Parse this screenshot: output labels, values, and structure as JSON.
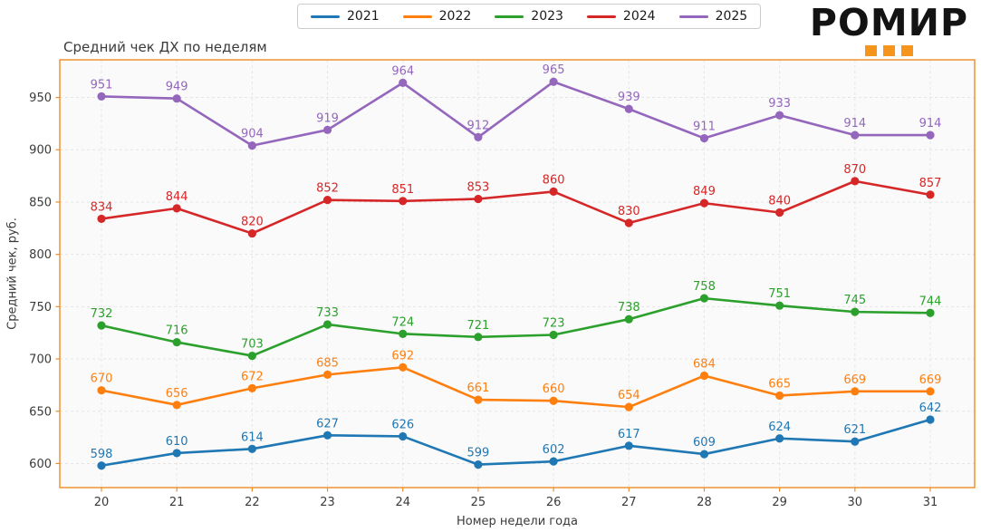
{
  "logo": {
    "text": "РОМИР"
  },
  "style": {
    "frame_color": "#f08c21",
    "grid_color": "#e5e5e5",
    "plot_bg": "#fafafa",
    "text_color": "#3a3a3a",
    "logo_accent": "#f7941d",
    "legend_border": "#cccccc"
  },
  "chart_data": {
    "type": "line",
    "title": "Средний чек ДХ по неделям",
    "xlabel": "Номер недели года",
    "ylabel": "Средний чек, руб.",
    "x": [
      20,
      21,
      22,
      23,
      24,
      25,
      26,
      27,
      28,
      29,
      30,
      31
    ],
    "yticks": [
      600,
      650,
      700,
      750,
      800,
      850,
      900,
      950
    ],
    "ylim": [
      577,
      986
    ],
    "grid": true,
    "legend_position": "top-center",
    "marker": "circle",
    "point_labels": true,
    "series": [
      {
        "name": "2021",
        "color": "#1f77b4",
        "values": [
          598,
          610,
          614,
          627,
          626,
          599,
          602,
          617,
          609,
          624,
          621,
          642
        ]
      },
      {
        "name": "2022",
        "color": "#ff7f0e",
        "values": [
          670,
          656,
          672,
          685,
          692,
          661,
          660,
          654,
          684,
          665,
          669,
          669
        ]
      },
      {
        "name": "2023",
        "color": "#2ca02c",
        "values": [
          732,
          716,
          703,
          733,
          724,
          721,
          723,
          738,
          758,
          751,
          745,
          744
        ]
      },
      {
        "name": "2024",
        "color": "#d62728",
        "values": [
          834,
          844,
          820,
          852,
          851,
          853,
          860,
          830,
          849,
          840,
          870,
          857
        ]
      },
      {
        "name": "2025",
        "color": "#9467bd",
        "values": [
          951,
          949,
          904,
          919,
          964,
          912,
          965,
          939,
          911,
          933,
          914,
          914
        ]
      }
    ]
  }
}
